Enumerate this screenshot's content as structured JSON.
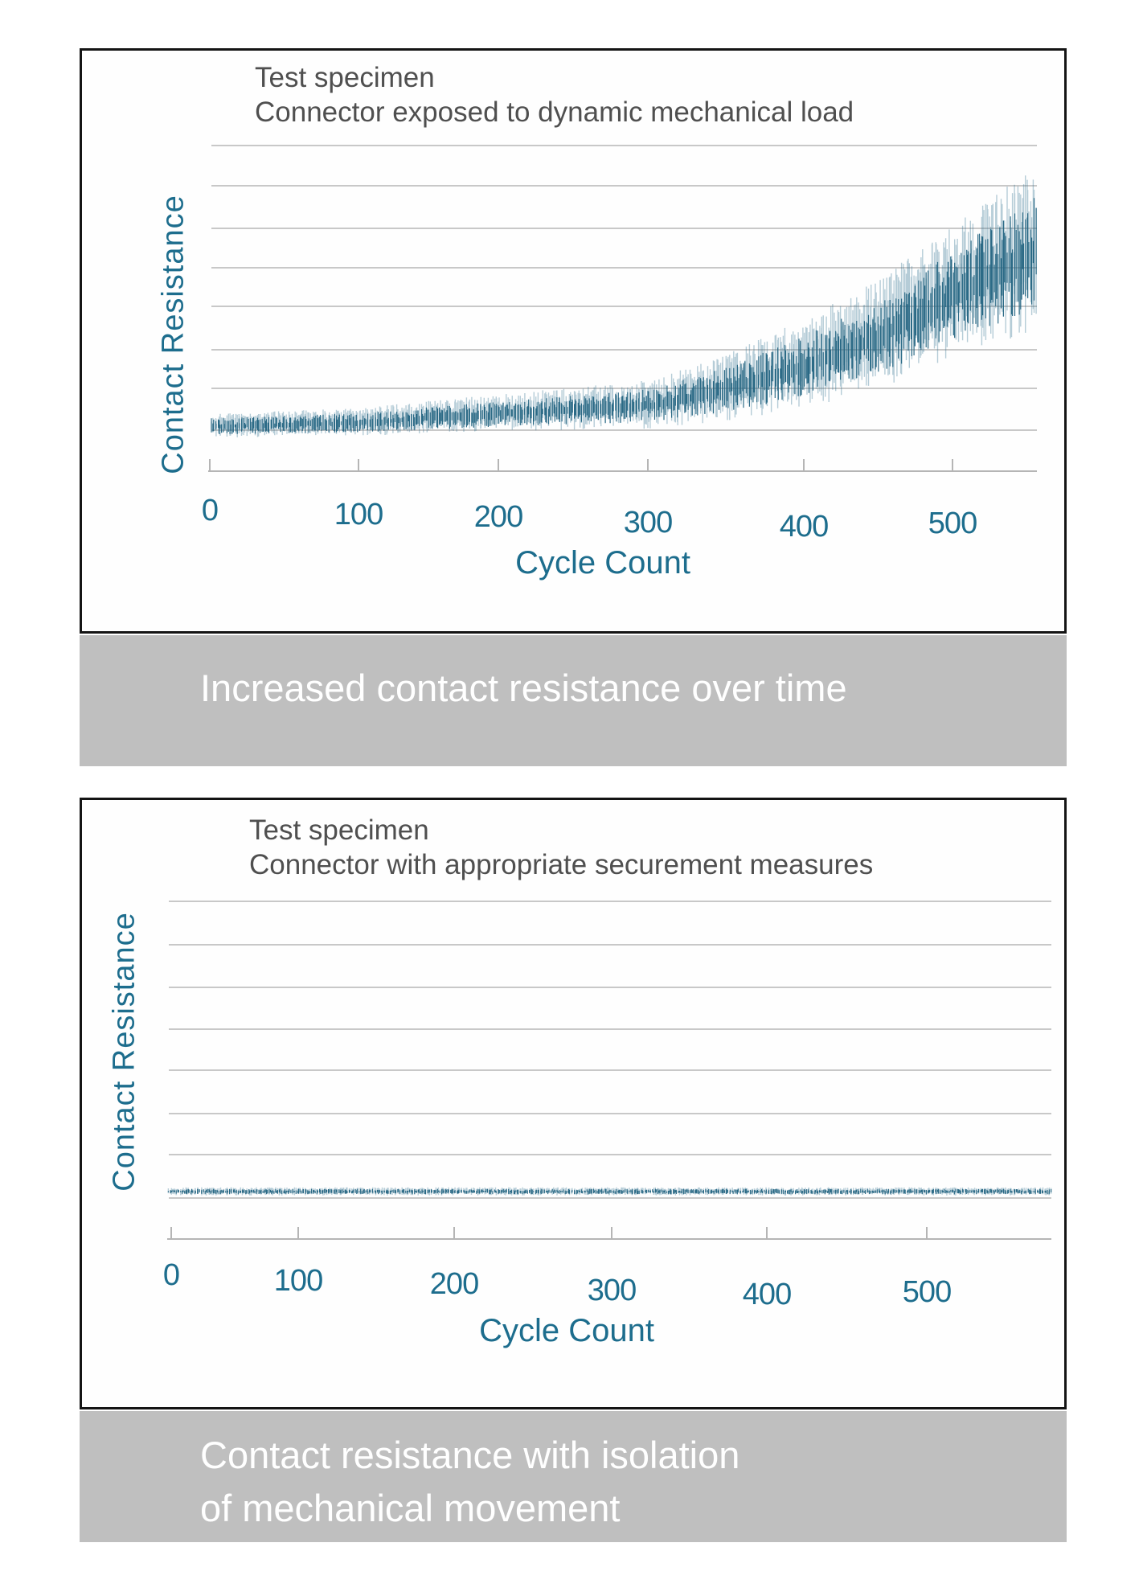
{
  "page": {
    "background": "#ffffff"
  },
  "colors": {
    "data_teal_dark": "#2a6e8d",
    "data_teal_light": "#9dbecb",
    "axis_text_teal": "#1d6d8d",
    "title_gray": "#4f4f4f",
    "gridline_gray": "#c8c8c8",
    "axis_line_gray": "#b5b5b5",
    "banner_background": "#bfbfbf",
    "banner_text": "#ffffff",
    "card_border": "#141414"
  },
  "banners": [
    {
      "text": "Increased contact resistance over time"
    },
    {
      "line1": "Contact resistance with isolation",
      "line2": "of mechanical movement"
    }
  ],
  "chart_data": [
    {
      "type": "line",
      "title_line1": "Test specimen",
      "title_line2": "Connector exposed to dynamic mechanical load",
      "xlabel": "Cycle Count",
      "ylabel": "Contact Resistance",
      "x_ticks": [
        "0",
        "100",
        "200",
        "300",
        "400",
        "500"
      ],
      "x_range": [
        0,
        557
      ],
      "y_axis": "qualitative, unlabeled (arbitrary units, baseline = 1.0)",
      "gridlines": 8,
      "legend": "none",
      "trend": "noisy oscillating signal; flat baseline that rises exponentially with strongly growing oscillation amplitude toward the end of the test",
      "series": [
        {
          "name": "contact resistance, connector under dynamic mechanical load",
          "style": "noisy-oscillation",
          "envelope_keypoints": [
            {
              "cycle": 0,
              "mean": 1.0,
              "amplitude": 0.28
            },
            {
              "cycle": 100,
              "mean": 1.08,
              "amplitude": 0.33
            },
            {
              "cycle": 200,
              "mean": 1.29,
              "amplitude": 0.45
            },
            {
              "cycle": 250,
              "mean": 1.38,
              "amplitude": 0.5
            },
            {
              "cycle": 300,
              "mean": 1.47,
              "amplitude": 0.58
            },
            {
              "cycle": 350,
              "mean": 1.85,
              "amplitude": 0.8
            },
            {
              "cycle": 400,
              "mean": 2.35,
              "amplitude": 1.05
            },
            {
              "cycle": 450,
              "mean": 2.98,
              "amplitude": 1.3
            },
            {
              "cycle": 500,
              "mean": 3.91,
              "amplitude": 1.55
            },
            {
              "cycle": 557,
              "mean": 4.9,
              "amplitude": 1.97
            }
          ]
        }
      ]
    },
    {
      "type": "line",
      "title_line1": "Test specimen",
      "title_line2": "Connector with appropriate securement measures",
      "xlabel": "Cycle Count",
      "ylabel": "Contact Resistance",
      "x_ticks": [
        "0",
        "100",
        "200",
        "300",
        "400",
        "500"
      ],
      "x_range": [
        0,
        580
      ],
      "y_axis": "qualitative, unlabeled (arbitrary units, baseline = 1.0)",
      "gridlines": 8,
      "legend": "none",
      "trend": "flat noisy line at baseline level for the whole cycle range; no increase in contact resistance",
      "series": [
        {
          "name": "contact resistance, connector with securement measures",
          "style": "noisy-oscillation",
          "envelope_keypoints": [
            {
              "cycle": 0,
              "mean": 1.0,
              "amplitude": 0.09
            },
            {
              "cycle": 580,
              "mean": 1.0,
              "amplitude": 0.09
            }
          ]
        }
      ]
    }
  ]
}
